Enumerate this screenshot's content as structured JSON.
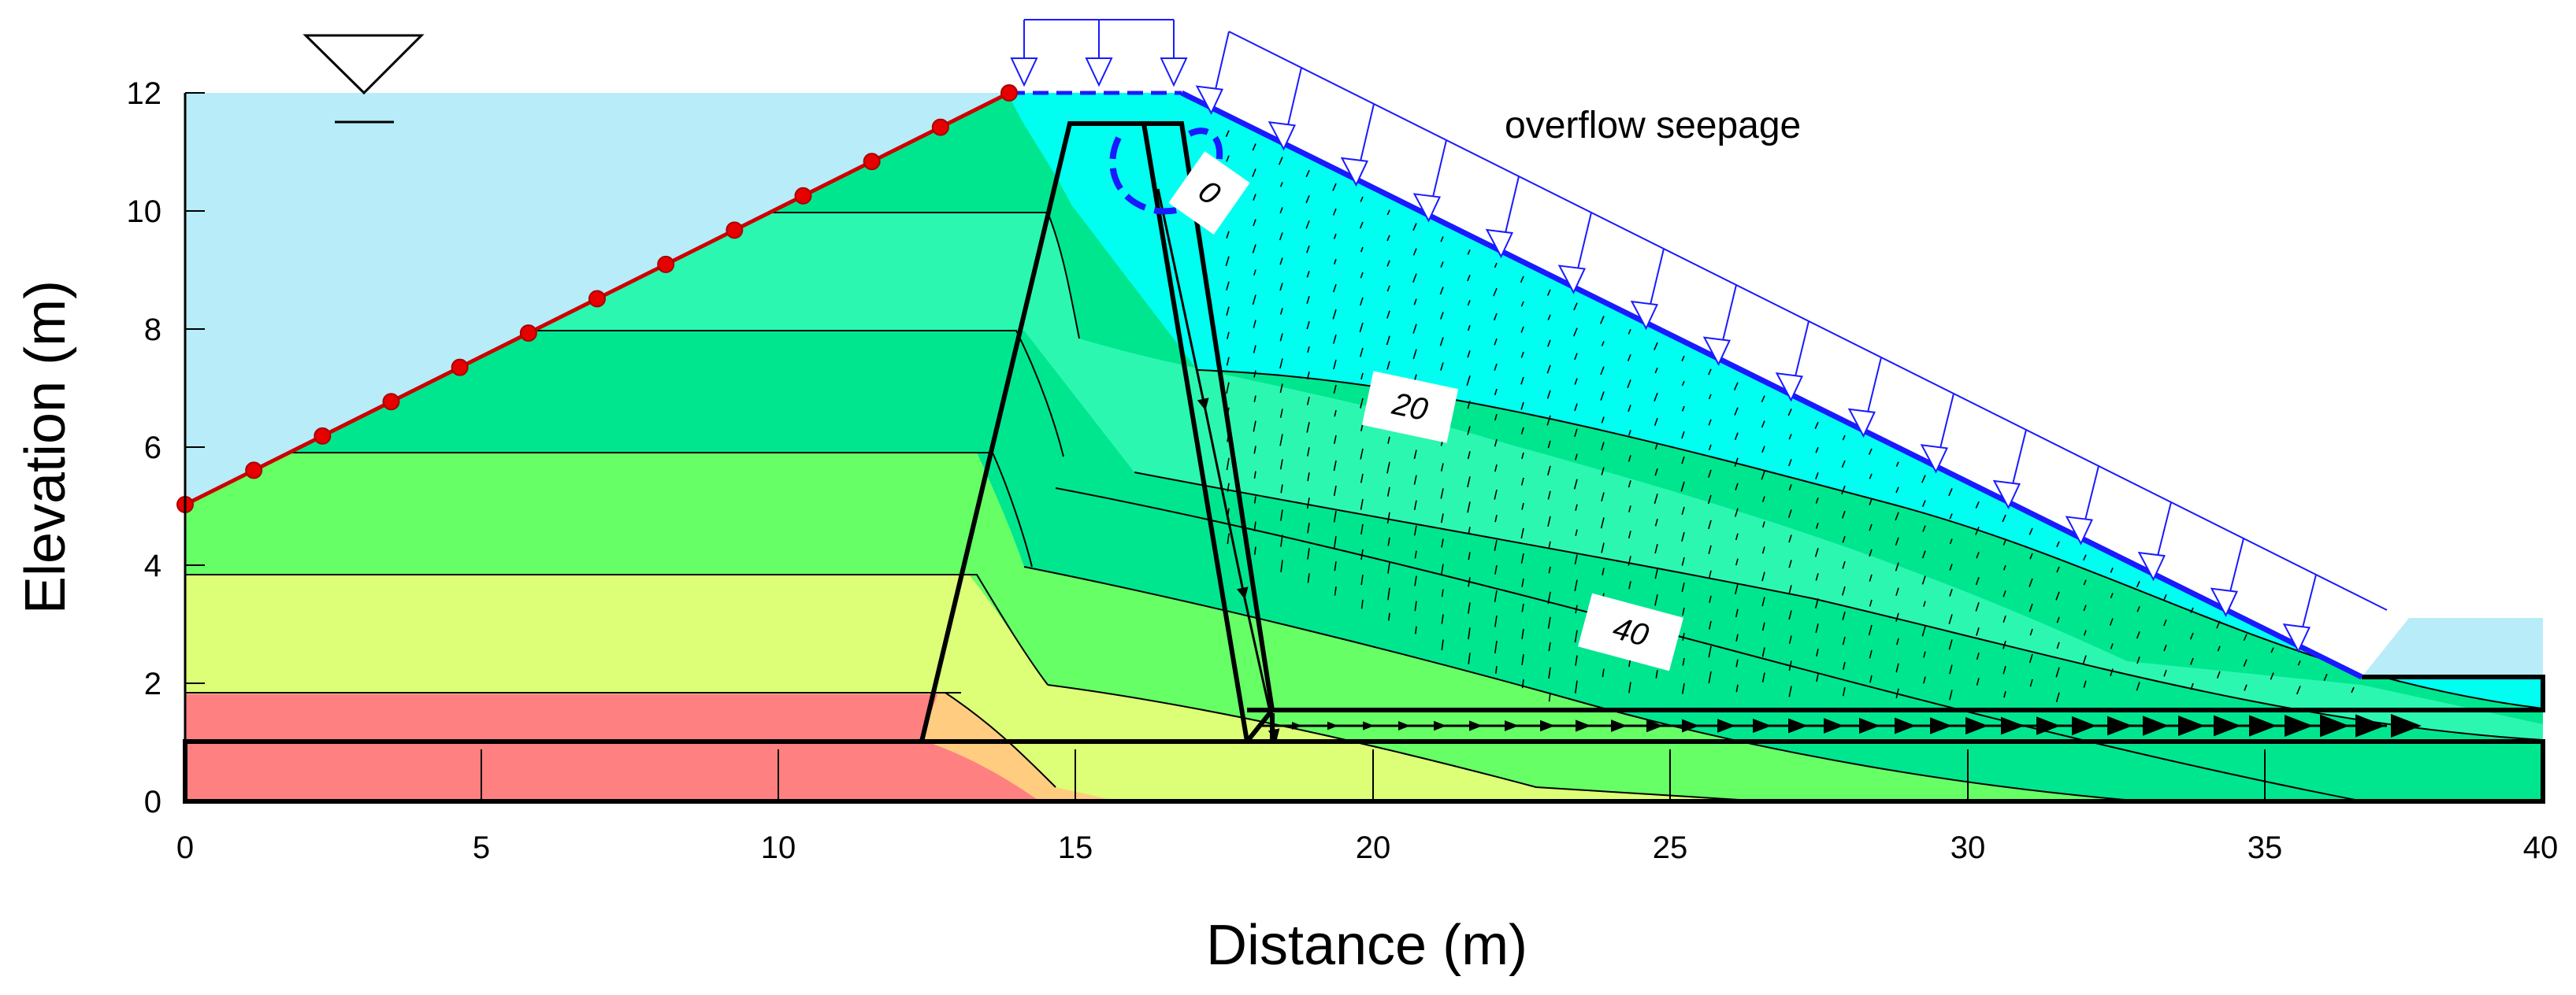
{
  "axes": {
    "x_title": "Distance (m)",
    "y_title": "Elevation (m)",
    "x_ticks": [
      "0",
      "5",
      "10",
      "15",
      "20",
      "25",
      "30",
      "35",
      "40"
    ],
    "y_ticks": [
      "0",
      "2",
      "4",
      "6",
      "8",
      "10",
      "12"
    ],
    "x_range": [
      0,
      40
    ],
    "y_range": [
      0,
      12
    ]
  },
  "annotations": {
    "overflow": "overflow seepage"
  },
  "contour_labels": [
    "0",
    "20",
    "40"
  ],
  "colors": {
    "water": "#b8ecf8",
    "cyan_zone": "#00fff0",
    "green_light": "#44ffb0",
    "green": "#00e68f",
    "green2": "#66ff66",
    "yellow_green": "#ddff77",
    "orange": "#ffcc80",
    "red": "#ff8080",
    "boundary_red": "#cc0000",
    "seepage_blue": "#1a1aff"
  }
}
